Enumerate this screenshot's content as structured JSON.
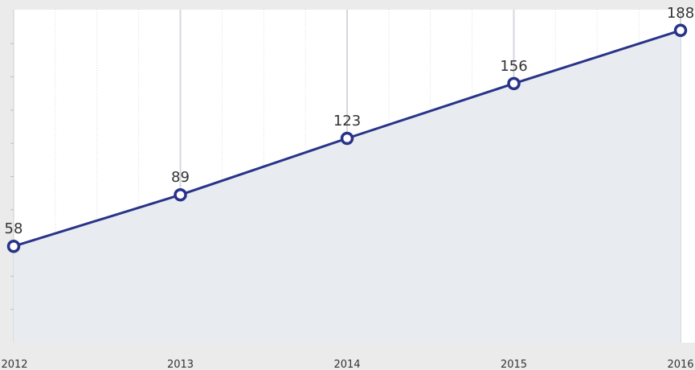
{
  "chart_data": {
    "type": "area",
    "categories": [
      "2012",
      "2013",
      "2014",
      "2015",
      "2016"
    ],
    "values": [
      58,
      89,
      123,
      156,
      188
    ],
    "data_labels": [
      "58",
      "89",
      "123",
      "156",
      "188"
    ],
    "ylim": [
      0,
      200
    ],
    "grid": true,
    "colors": {
      "line": "#283389",
      "area": "#e8ebef",
      "marker_fill": "#ffffff",
      "background": "#ebebeb",
      "plot_background": "#ffffff",
      "grid": "#cccccc"
    }
  }
}
